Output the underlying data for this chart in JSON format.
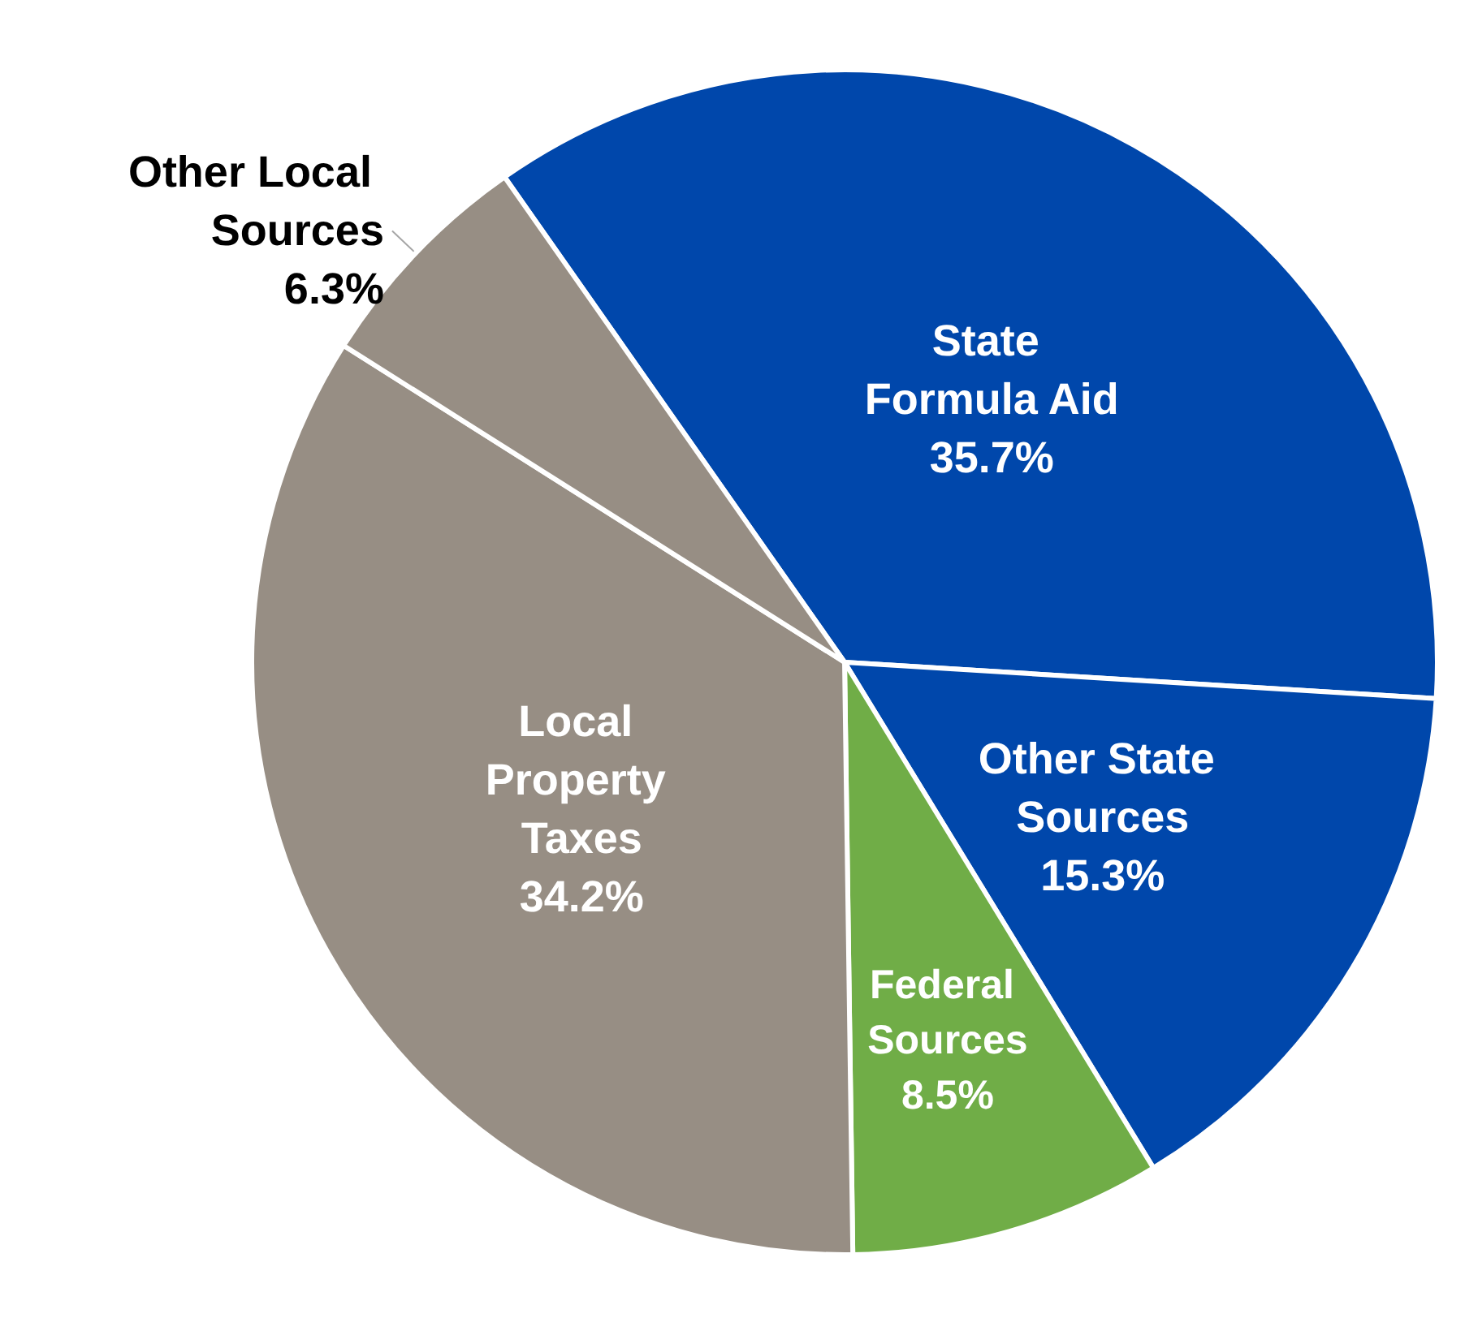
{
  "chart_data": {
    "type": "pie",
    "categories": [
      "State Formula Aid",
      "Other State Sources",
      "Federal Sources",
      "Local Property Taxes",
      "Other Local Sources"
    ],
    "values": [
      35.7,
      15.3,
      8.5,
      34.2,
      6.3
    ],
    "value_labels": [
      "35.7%",
      "15.3%",
      "8.5%",
      "34.2%",
      "6.3%"
    ],
    "colors": [
      "#0047ab",
      "#0047ab",
      "#70ad47",
      "#978e84",
      "#978e84"
    ]
  }
}
